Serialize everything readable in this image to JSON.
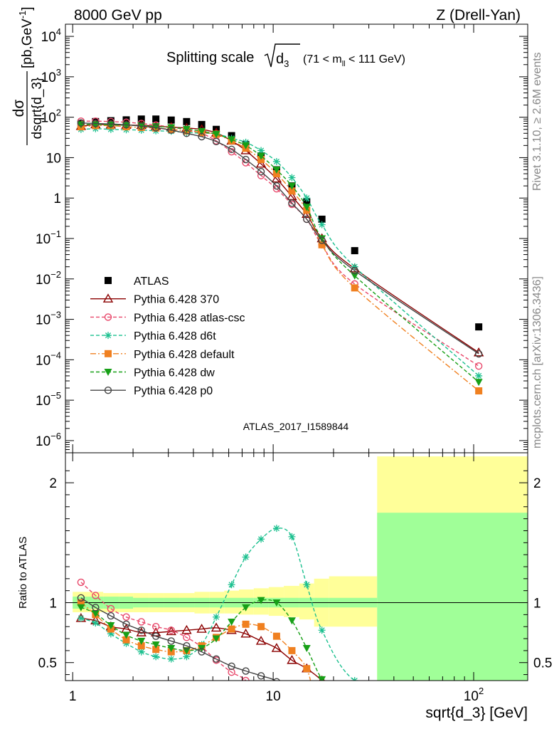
{
  "header": {
    "left": "8000 GeV pp",
    "right": "Z (Drell-Yan)"
  },
  "side_text": {
    "rivet": "Rivet 3.1.10, ≥ 2.6M events",
    "mcplots": "mcplots.cern.ch [arXiv:1306.3436]"
  },
  "chart_data": [
    {
      "type": "scatter",
      "panel": "main",
      "title": "Splitting scale √d3 (71 < mll < 111 GeV)",
      "title_main": "Splitting scale",
      "title_sub": "d",
      "title_sub_index": "3",
      "title_cut": "(71 < m",
      "title_cut_sub": "ll",
      "title_cut_end": " < 111 GeV)",
      "ylabel": "dσ / dsqrt{d_3} [pb,GeV⁻¹]",
      "ylabel_num": "dσ",
      "ylabel_den": "dsqrt{d_3}",
      "ylabel_unit": "[pb,GeV",
      "ylabel_unit_sup": "-1",
      "ylabel_unit_end": "]",
      "xscale": "log",
      "yscale": "log",
      "xlim": [
        0.92,
        186
      ],
      "ylim": [
        5e-07,
        20000
      ],
      "yticks": [
        {
          "v": 10000.0,
          "b": "10",
          "e": "4"
        },
        {
          "v": 1000.0,
          "b": "10",
          "e": "3"
        },
        {
          "v": 100.0,
          "b": "10",
          "e": "2"
        },
        {
          "v": 10,
          "b": "10",
          "e": ""
        },
        {
          "v": 1,
          "b": "1",
          "e": ""
        },
        {
          "v": 0.1,
          "b": "10",
          "e": "−1"
        },
        {
          "v": 0.01,
          "b": "10",
          "e": "−2"
        },
        {
          "v": 0.001,
          "b": "10",
          "e": "−3"
        },
        {
          "v": 0.0001,
          "b": "10",
          "e": "−4"
        },
        {
          "v": 1e-05,
          "b": "10",
          "e": "−5"
        },
        {
          "v": 1e-06,
          "b": "10",
          "e": "−6"
        }
      ],
      "watermark": "ATLAS_2017_I1589844",
      "legend_position": "lower-left",
      "x": [
        1.1,
        1.3,
        1.55,
        1.85,
        2.2,
        2.6,
        3.1,
        3.7,
        4.4,
        5.2,
        6.2,
        7.3,
        8.7,
        10.4,
        12.4,
        14.7,
        17.5,
        25.5,
        106
      ],
      "series": [
        {
          "name": "ATLAS",
          "color": "#000000",
          "marker": "square-filled",
          "line": "none",
          "values": [
            70,
            78,
            82,
            86,
            90,
            90,
            85,
            78,
            66,
            50,
            35,
            21,
            11,
            5,
            2,
            0.8,
            0.3,
            0.05,
            0.00065
          ]
        },
        {
          "name": "Pythia 6.428 370",
          "color": "#8b0000",
          "marker": "triangle-open",
          "line": "solid",
          "values": [
            60,
            66,
            65,
            64,
            63,
            60,
            57,
            54,
            50,
            41,
            26,
            15,
            7,
            3,
            1.1,
            0.4,
            0.1,
            0.018,
            0.00015
          ]
        },
        {
          "name": "Pythia 6.428 atlas-csc",
          "color": "#e8476a",
          "marker": "circle-open",
          "line": "dashed",
          "values": [
            80,
            80,
            78,
            75,
            70,
            64,
            57,
            49,
            40,
            26,
            14,
            7.5,
            3.6,
            1.7,
            0.7,
            0.3,
            0.07,
            0.0075,
            7e-05
          ]
        },
        {
          "name": "Pythia 6.428 d6t",
          "color": "#1cc08f",
          "marker": "star",
          "line": "dashed",
          "values": [
            50,
            52,
            50,
            49,
            48,
            46,
            45,
            42,
            40,
            39,
            30,
            24,
            15,
            8,
            3.2,
            1,
            0.22,
            0.02,
            4e-05
          ]
        },
        {
          "name": "Pythia 6.428 default",
          "color": "#f08020",
          "marker": "square-filled",
          "line": "dashdot",
          "values": [
            58,
            62,
            62,
            58,
            56,
            54,
            50,
            46,
            42,
            38,
            26,
            17,
            9,
            4,
            1.5,
            0.5,
            0.07,
            0.006,
            1.7e-05
          ]
        },
        {
          "name": "Pythia 6.428 dw",
          "color": "#17a017",
          "marker": "triangle-down-filled",
          "line": "dashed",
          "values": [
            66,
            66,
            65,
            63,
            62,
            59,
            56,
            51,
            45,
            38,
            28,
            20,
            11,
            5,
            2,
            0.6,
            0.1,
            0.012,
            2.8e-05
          ]
        },
        {
          "name": "Pythia 6.428 p0",
          "color": "#444444",
          "marker": "circle-open",
          "line": "solid",
          "values": [
            72,
            70,
            68,
            65,
            60,
            55,
            48,
            40,
            33,
            25,
            16,
            9,
            4.5,
            2,
            0.75,
            0.3,
            0.09,
            0.016,
            0.00014
          ]
        }
      ]
    },
    {
      "type": "line",
      "panel": "ratio",
      "ylabel": "Ratio to ATLAS",
      "xlabel": "sqrt{d_3} [GeV]",
      "xscale": "log",
      "xlim": [
        0.92,
        186
      ],
      "ylim": [
        0.35,
        2.25
      ],
      "xticks": [
        {
          "v": 1,
          "b": "1",
          "e": ""
        },
        {
          "v": 10,
          "b": "10",
          "e": ""
        },
        {
          "v": 100,
          "b": "10",
          "e": "2"
        }
      ],
      "yticks": [
        "0.5",
        "1",
        "2"
      ],
      "ytick_values": [
        0.5,
        1,
        2
      ],
      "reference_line": 1,
      "bins": [
        {
          "x": [
            1,
            1.2
          ],
          "inner": [
            0.95,
            1.05
          ],
          "outer": [
            0.92,
            1.09
          ]
        },
        {
          "x": [
            1.2,
            1.42
          ],
          "inner": [
            0.95,
            1.05
          ],
          "outer": [
            0.92,
            1.09
          ]
        },
        {
          "x": [
            1.42,
            1.7
          ],
          "inner": [
            0.95,
            1.05
          ],
          "outer": [
            0.92,
            1.08
          ]
        },
        {
          "x": [
            1.7,
            2.0
          ],
          "inner": [
            0.95,
            1.05
          ],
          "outer": [
            0.92,
            1.08
          ]
        },
        {
          "x": [
            2.0,
            2.4
          ],
          "inner": [
            0.96,
            1.04
          ],
          "outer": [
            0.92,
            1.08
          ]
        },
        {
          "x": [
            2.4,
            2.85
          ],
          "inner": [
            0.96,
            1.04
          ],
          "outer": [
            0.92,
            1.08
          ]
        },
        {
          "x": [
            2.85,
            3.4
          ],
          "inner": [
            0.96,
            1.04
          ],
          "outer": [
            0.92,
            1.08
          ]
        },
        {
          "x": [
            3.4,
            4.05
          ],
          "inner": [
            0.96,
            1.04
          ],
          "outer": [
            0.92,
            1.08
          ]
        },
        {
          "x": [
            4.05,
            4.8
          ],
          "inner": [
            0.96,
            1.04
          ],
          "outer": [
            0.91,
            1.09
          ]
        },
        {
          "x": [
            4.8,
            5.7
          ],
          "inner": [
            0.96,
            1.04
          ],
          "outer": [
            0.91,
            1.09
          ]
        },
        {
          "x": [
            5.7,
            6.75
          ],
          "inner": [
            0.96,
            1.04
          ],
          "outer": [
            0.91,
            1.1
          ]
        },
        {
          "x": [
            6.75,
            8.0
          ],
          "inner": [
            0.96,
            1.04
          ],
          "outer": [
            0.9,
            1.11
          ]
        },
        {
          "x": [
            8.0,
            9.5
          ],
          "inner": [
            0.96,
            1.04
          ],
          "outer": [
            0.9,
            1.12
          ]
        },
        {
          "x": [
            9.5,
            11.3
          ],
          "inner": [
            0.96,
            1.04
          ],
          "outer": [
            0.89,
            1.13
          ]
        },
        {
          "x": [
            11.3,
            13.5
          ],
          "inner": [
            0.96,
            1.04
          ],
          "outer": [
            0.88,
            1.14
          ]
        },
        {
          "x": [
            13.5,
            16.0
          ],
          "inner": [
            0.96,
            1.04
          ],
          "outer": [
            0.86,
            1.16
          ]
        },
        {
          "x": [
            16.0,
            19.0
          ],
          "inner": [
            0.96,
            1.04
          ],
          "outer": [
            0.8,
            1.2
          ]
        },
        {
          "x": [
            19.0,
            33.0
          ],
          "inner": [
            0.96,
            1.04
          ],
          "outer": [
            0.8,
            1.22
          ]
        },
        {
          "x": [
            33.0,
            186
          ],
          "inner": [
            0.35,
            1.75
          ],
          "outer": [
            0.35,
            2.22
          ]
        }
      ],
      "inner_band_color": "#a0ff98",
      "outer_band_color": "#ffff99",
      "x": [
        1.1,
        1.3,
        1.55,
        1.85,
        2.2,
        2.6,
        3.1,
        3.7,
        4.4,
        5.2,
        6.2,
        7.3,
        8.7,
        10.4,
        12.4,
        14.7,
        17.5,
        25.5,
        106
      ],
      "series": [
        {
          "name": "Pythia 6.428 370",
          "color": "#8b0000",
          "marker": "triangle-open",
          "line": "solid",
          "values": [
            0.87,
            0.85,
            0.8,
            0.78,
            0.75,
            0.75,
            0.76,
            0.77,
            0.78,
            0.79,
            0.77,
            0.74,
            0.68,
            0.62,
            0.52,
            0.45,
            0.35,
            null,
            null
          ]
        },
        {
          "name": "Pythia 6.428 atlas-csc",
          "color": "#e8476a",
          "marker": "circle-open",
          "line": "dashed",
          "values": [
            1.17,
            1.06,
            0.95,
            0.88,
            0.84,
            0.8,
            0.77,
            0.71,
            0.63,
            0.52,
            0.42,
            0.35,
            null,
            null,
            null,
            null,
            null,
            null,
            null
          ]
        },
        {
          "name": "Pythia 6.428 d6t",
          "color": "#1cc08f",
          "marker": "star",
          "line": "dashed",
          "values": [
            0.87,
            0.83,
            0.74,
            0.66,
            0.59,
            0.55,
            0.53,
            0.55,
            0.65,
            0.88,
            1.15,
            1.38,
            1.53,
            1.62,
            1.55,
            1.15,
            0.77,
            0.35,
            null
          ]
        },
        {
          "name": "Pythia 6.428 default",
          "color": "#f08020",
          "marker": "square-filled",
          "line": "dashdot",
          "values": [
            1.0,
            0.9,
            0.78,
            0.69,
            0.64,
            0.61,
            0.59,
            0.6,
            0.64,
            0.71,
            0.78,
            0.82,
            0.8,
            0.72,
            0.6,
            0.45,
            null,
            null,
            null
          ]
        },
        {
          "name": "Pythia 6.428 dw",
          "color": "#17a017",
          "marker": "triangle-down-filled",
          "line": "dashed",
          "values": [
            0.96,
            0.91,
            0.81,
            0.73,
            0.68,
            0.65,
            0.62,
            0.6,
            0.62,
            0.7,
            0.84,
            0.96,
            1.02,
            1.0,
            0.85,
            0.62,
            0.36,
            null,
            null
          ]
        },
        {
          "name": "Pythia 6.428 p0",
          "color": "#444444",
          "marker": "circle-open",
          "line": "solid",
          "values": [
            1.04,
            0.96,
            0.89,
            0.82,
            0.77,
            0.72,
            0.68,
            0.64,
            0.59,
            0.53,
            0.47,
            0.43,
            0.39,
            0.34,
            null,
            null,
            null,
            null,
            null
          ]
        }
      ]
    }
  ]
}
